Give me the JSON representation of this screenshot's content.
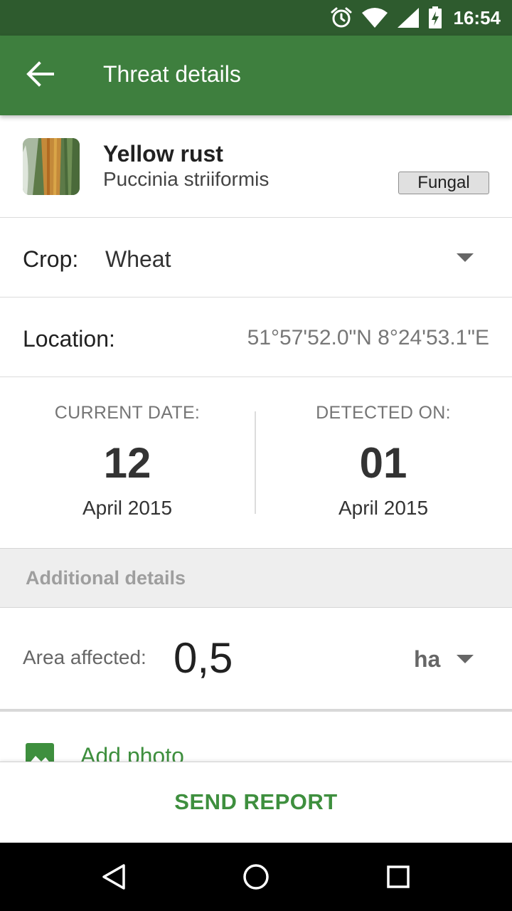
{
  "status_bar": {
    "time": "16:54",
    "icons": [
      "alarm-icon",
      "wifi-icon",
      "signal-icon",
      "battery-charging-icon"
    ]
  },
  "app_bar": {
    "title": "Threat details",
    "back_icon": "arrow-back-icon"
  },
  "threat": {
    "name": "Yellow rust",
    "latin_name": "Puccinia striiformis",
    "category": "Fungal"
  },
  "crop": {
    "label": "Crop:",
    "value": "Wheat"
  },
  "location": {
    "label": "Location:",
    "value": "51°57'52.0\"N 8°24'53.1\"E"
  },
  "dates": {
    "current": {
      "label": "CURRENT DATE:",
      "day": "12",
      "month_year": "April 2015"
    },
    "detected": {
      "label": "DETECTED ON:",
      "day": "01",
      "month_year": "April 2015"
    }
  },
  "additional": {
    "title": "Additional details",
    "area_label": "Area affected:",
    "area_value": "0,5",
    "area_unit": "ha",
    "add_photo": "Add photo"
  },
  "actions": {
    "send_report": "SEND REPORT"
  },
  "colors": {
    "status_bar": "#2e5b2e",
    "app_bar": "#3e7f3e",
    "accent_green": "#3e8f3e"
  }
}
